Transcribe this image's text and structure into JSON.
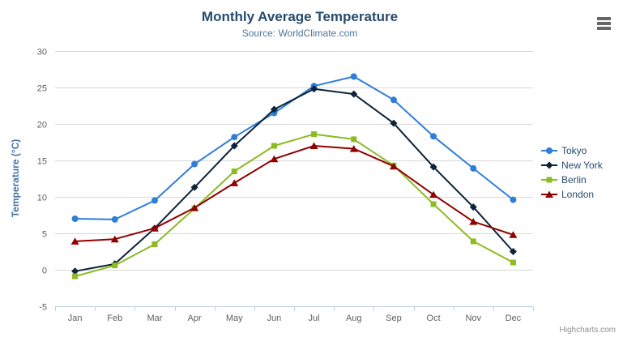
{
  "chart_data": {
    "type": "line",
    "title": "Monthly Average Temperature",
    "subtitle": "Source: WorldClimate.com",
    "xlabel": "",
    "ylabel": "Temperature (°C)",
    "ylim": [
      -5,
      30
    ],
    "yticks": [
      30,
      25,
      20,
      15,
      10,
      5,
      0,
      -5
    ],
    "categories": [
      "Jan",
      "Feb",
      "Mar",
      "Apr",
      "May",
      "Jun",
      "Jul",
      "Aug",
      "Sep",
      "Oct",
      "Nov",
      "Dec"
    ],
    "grid": true,
    "legend_position": "right",
    "series": [
      {
        "name": "Tokyo",
        "color": "#2f7ed8",
        "marker": "circle",
        "values": [
          7.0,
          6.9,
          9.5,
          14.5,
          18.2,
          21.5,
          25.2,
          26.5,
          23.3,
          18.3,
          13.9,
          9.6
        ]
      },
      {
        "name": "New York",
        "color": "#0d233a",
        "marker": "diamond",
        "values": [
          -0.2,
          0.8,
          5.7,
          11.3,
          17.0,
          22.0,
          24.8,
          24.1,
          20.1,
          14.1,
          8.6,
          2.5
        ]
      },
      {
        "name": "Berlin",
        "color": "#8bbc21",
        "marker": "square",
        "values": [
          -0.9,
          0.6,
          3.5,
          8.4,
          13.5,
          17.0,
          18.6,
          17.9,
          14.3,
          9.0,
          3.9,
          1.0
        ]
      },
      {
        "name": "London",
        "color": "#910000",
        "marker": "triangle",
        "values": [
          3.9,
          4.2,
          5.7,
          8.5,
          11.9,
          15.2,
          17.0,
          16.6,
          14.2,
          10.3,
          6.6,
          4.8
        ]
      }
    ]
  },
  "credits": {
    "label": "Highcharts.com"
  },
  "colors": {
    "background": "#ffffff",
    "grid_line": "#d8d8d8",
    "axis_line": "#c0d0e0",
    "tick_mark": "#c0d0e0",
    "axis_label_text": "#606060",
    "title_text": "#274b6d",
    "subtitle_text": "#4d759e",
    "y_axis_title_text": "#4572a7",
    "legend_text": "#274b6d",
    "credits_text": "#909090",
    "menu_icon": "#666666"
  }
}
